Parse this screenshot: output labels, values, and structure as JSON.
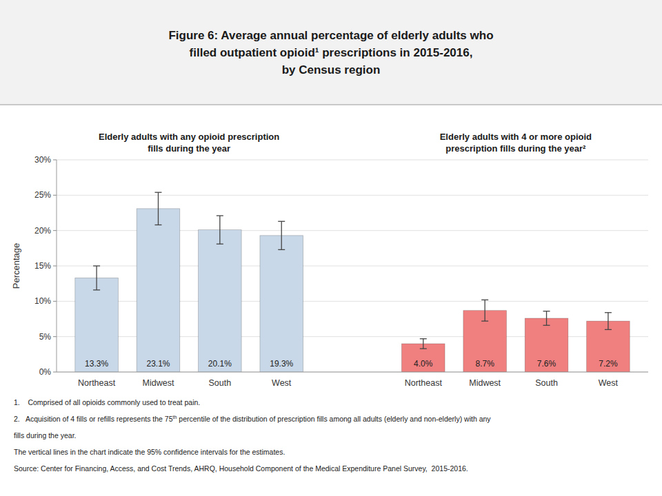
{
  "chart_data": {
    "type": "bar",
    "title": "Figure 6: Average annual percentage of elderly adults who\nfilled outpatient opioid¹ prescriptions in 2015-2016,\nby Census region",
    "categories": [
      "Northeast",
      "Midwest",
      "South",
      "West"
    ],
    "series": [
      {
        "name": "Elderly adults with any opioid prescription\nfills during the year",
        "color": "#c8d8e8",
        "values": [
          13.3,
          23.1,
          20.1,
          19.3
        ],
        "value_labels": [
          "13.3%",
          "23.1%",
          "20.1%",
          "19.3%"
        ],
        "error_low": [
          1.7,
          2.3,
          2.0,
          2.0
        ],
        "error_high": [
          1.7,
          2.3,
          2.0,
          2.0
        ]
      },
      {
        "name": "Elderly adults with 4 or more opioid\nprescription fills during the year²",
        "color": "#f08080",
        "values": [
          4.0,
          8.7,
          7.6,
          7.2
        ],
        "value_labels": [
          "4.0%",
          "8.7%",
          "7.6%",
          "7.2%"
        ],
        "error_low": [
          0.7,
          1.5,
          1.0,
          1.2
        ],
        "error_high": [
          0.7,
          1.5,
          1.0,
          1.2
        ]
      }
    ],
    "ylabel": "Percentage",
    "ylim": [
      0,
      30
    ],
    "yticks": [
      {
        "value": 0,
        "label": "0%"
      },
      {
        "value": 5,
        "label": "5%"
      },
      {
        "value": 10,
        "label": "10%"
      },
      {
        "value": 15,
        "label": "15%"
      },
      {
        "value": 20,
        "label": "20%"
      },
      {
        "value": 25,
        "label": "25%"
      },
      {
        "value": 30,
        "label": "30%"
      }
    ],
    "grid": true,
    "data_labels": true,
    "footnotes": [
      {
        "text": "1.    Comprised of all opioids commonly used to treat pain."
      },
      {
        "text": "2.   Acquisition of 4 fills or refills represents the 75",
        "superscript": "th",
        "text_after": " percentile of the distribution of prescription fills among all adults (elderly and non-elderly) with any"
      },
      {
        "text": "fills during the year."
      },
      {
        "text": "The vertical lines in the chart indicate the 95% confidence intervals for the estimates."
      },
      {
        "text": "Source: Center for Financing, Access, and Cost Trends, AHRQ, Household Component of the Medical Expenditure Panel Survey,  2015-2016."
      }
    ]
  }
}
